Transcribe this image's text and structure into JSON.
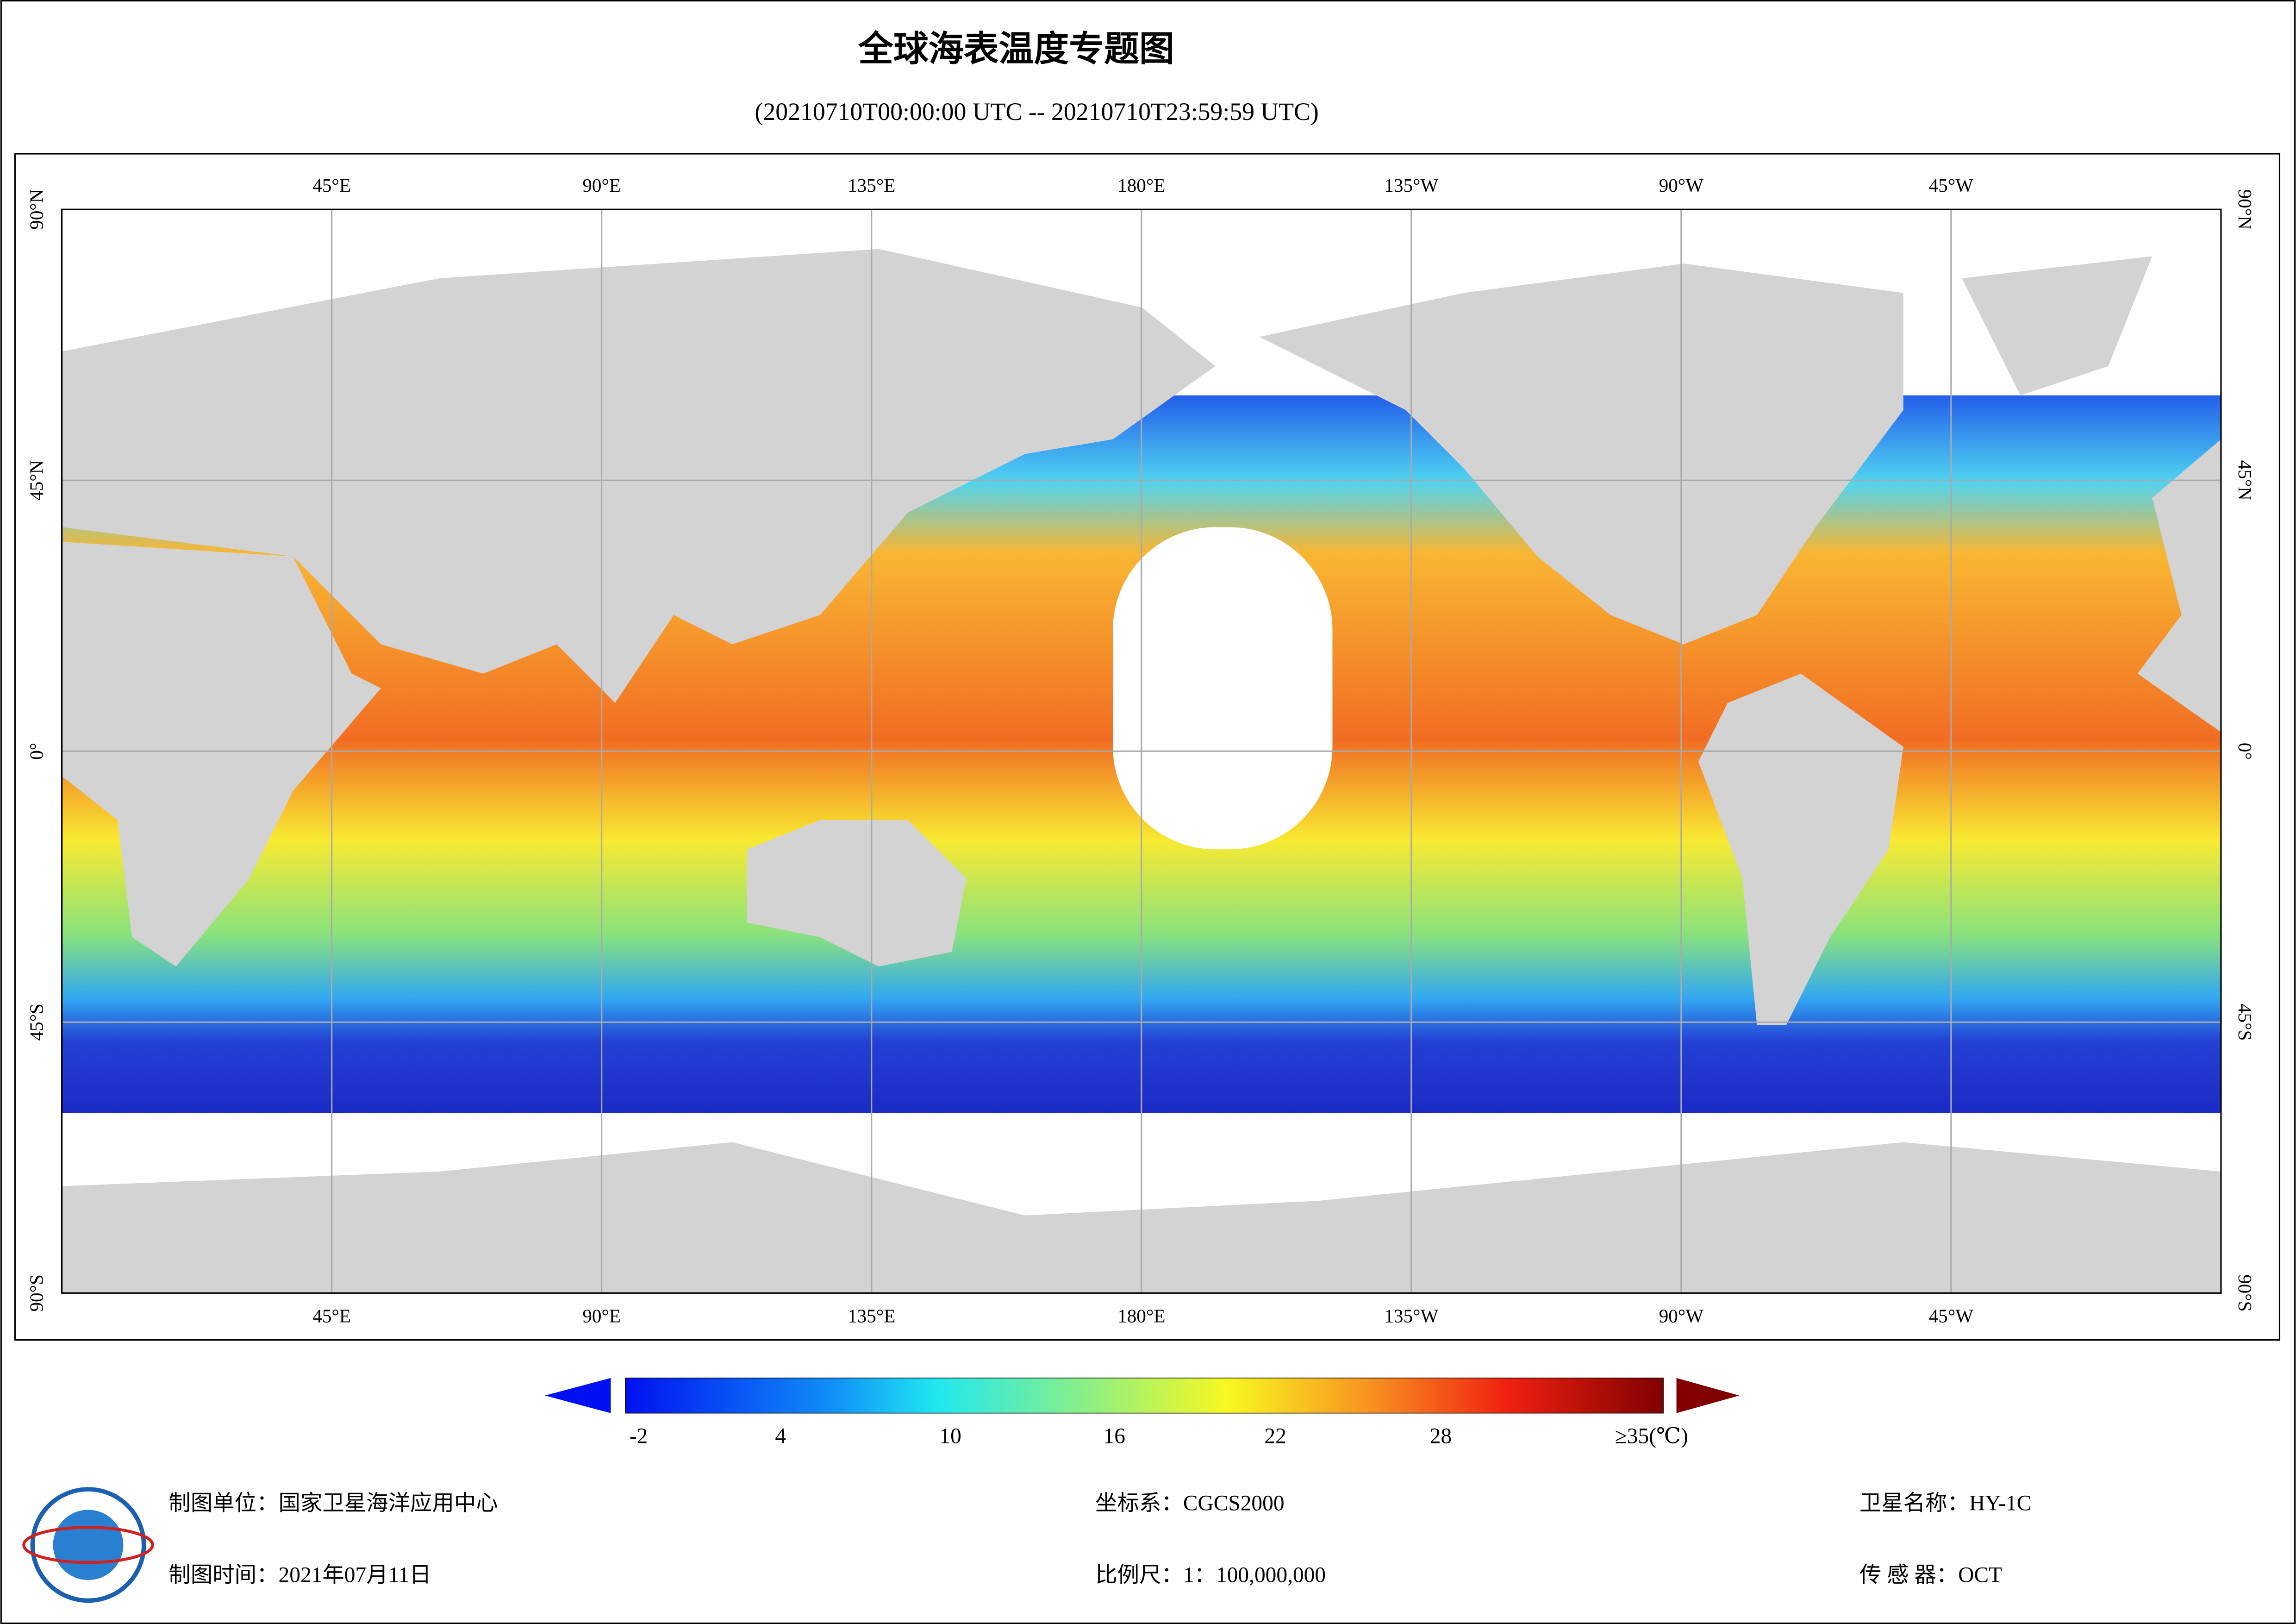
{
  "header": {
    "title": "全球海表温度专题图",
    "subtitle": "(20210710T00:00:00 UTC -- 20210710T23:59:59 UTC)"
  },
  "map": {
    "longitude_labels": [
      "45°E",
      "90°E",
      "135°E",
      "180°E",
      "135°W",
      "90°W",
      "45°W"
    ],
    "latitude_labels": [
      "90°N",
      "45°N",
      "0°",
      "45°S",
      "90°S"
    ]
  },
  "colorbar": {
    "labels": [
      "-2",
      "4",
      "10",
      "16",
      "22",
      "28",
      "≥35(℃)"
    ]
  },
  "footer": {
    "left": [
      "制图单位：国家卫星海洋应用中心",
      "制图时间：2021年07月11日"
    ],
    "middle": [
      "坐标系：CGCS2000",
      "比例尺：1：100,000,000"
    ],
    "right": [
      "卫星名称：HY-1C",
      "传 感 器：OCT"
    ]
  }
}
